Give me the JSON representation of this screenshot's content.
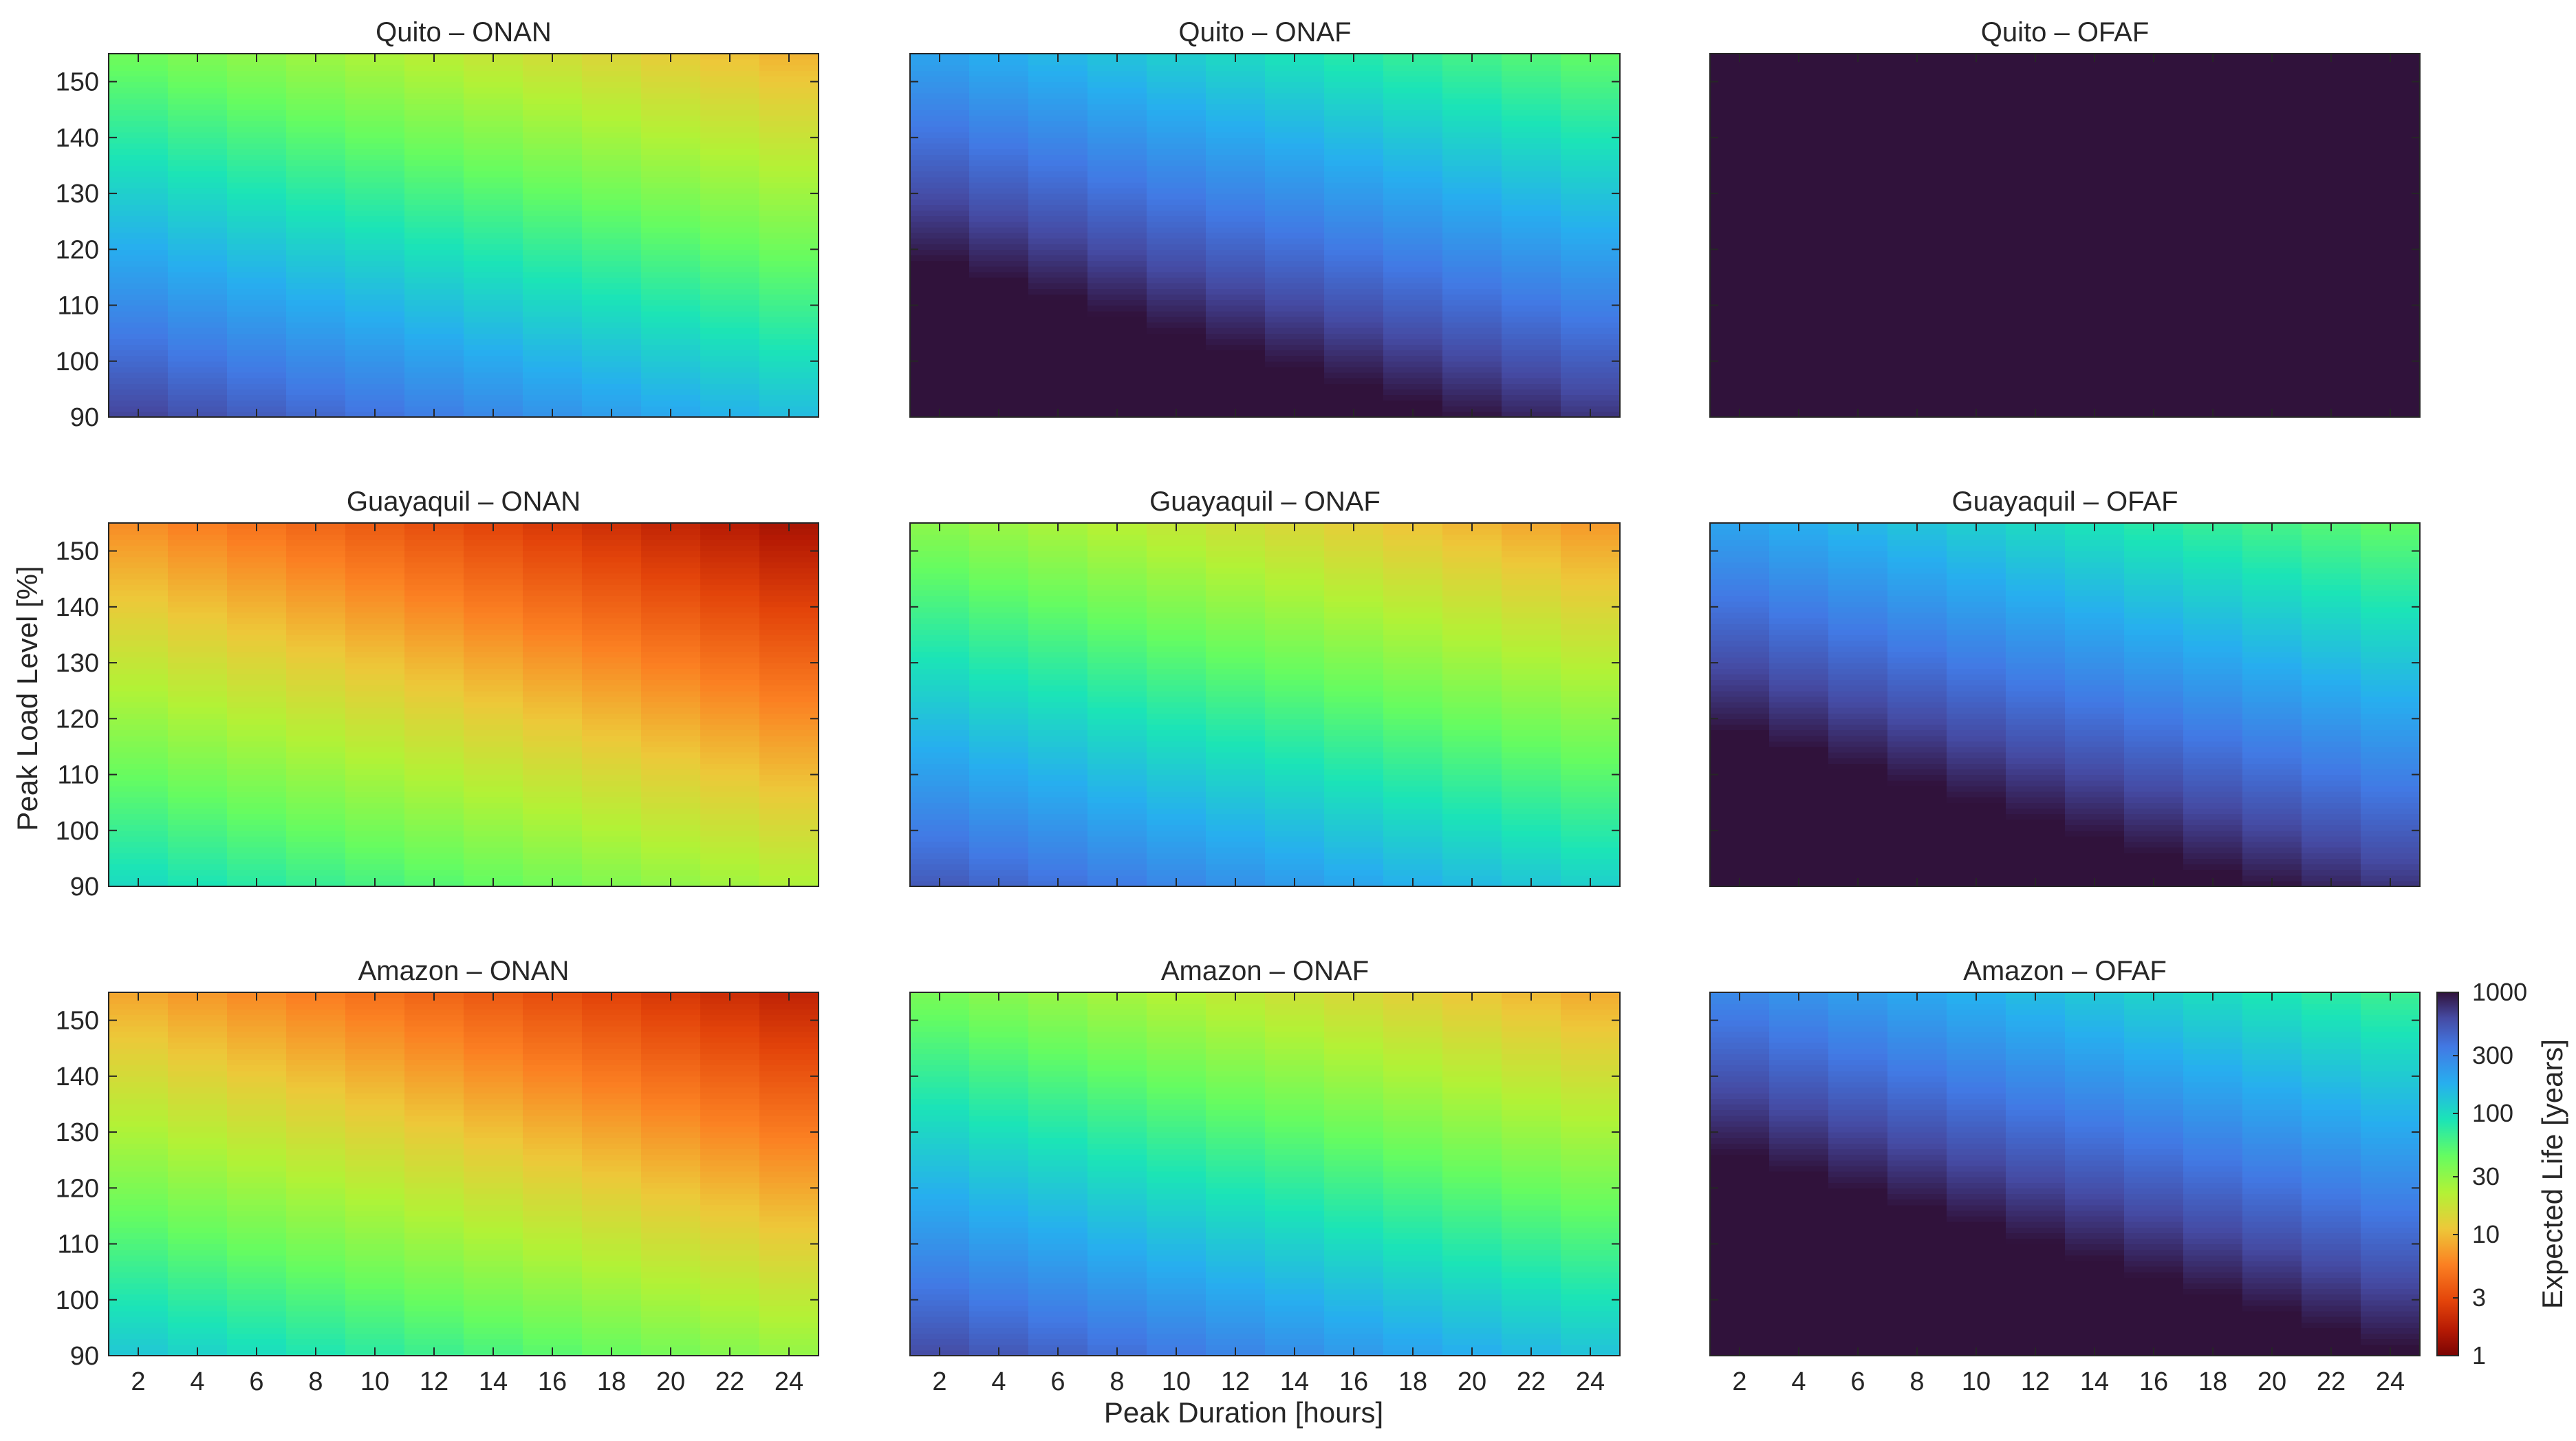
{
  "figure": {
    "xlabel": "Peak Duration [hours]",
    "ylabel": "Peak Load Level [%]",
    "colorbar": {
      "label": "Expected Life [years]",
      "ticks": [
        1,
        3,
        10,
        30,
        100,
        300,
        1000
      ],
      "tick_labels": [
        "1",
        "3",
        "10",
        "30",
        "100",
        "300",
        "1000"
      ],
      "scale": "log",
      "range": [
        1,
        1000
      ],
      "colormap": "turbo"
    }
  },
  "chart_data": [
    {
      "type": "heatmap",
      "title": "Quito – ONAN",
      "region": "Quito",
      "cooling": "ONAN",
      "x_range": [
        1,
        25
      ],
      "ylim": [
        90,
        155
      ],
      "xticks": [
        2,
        4,
        6,
        8,
        10,
        12,
        14,
        16,
        18,
        20,
        22,
        24
      ],
      "yticks": [
        90,
        100,
        110,
        120,
        130,
        140,
        150
      ],
      "z_model": {
        "z_at_x1_y90": 700,
        "decay_per_hour": 0.067,
        "decay_per_pct_load": 0.043,
        "z_cap_years": 1000
      }
    },
    {
      "type": "heatmap",
      "title": "Quito – ONAF",
      "region": "Quito",
      "cooling": "ONAF",
      "x_range": [
        1,
        25
      ],
      "ylim": [
        90,
        155
      ],
      "xticks": [
        2,
        4,
        6,
        8,
        10,
        12,
        14,
        16,
        18,
        20,
        22,
        24
      ],
      "yticks": [
        90,
        100,
        110,
        120,
        130,
        140,
        150
      ],
      "z_model": {
        "z_at_x1_y90": 3500,
        "decay_per_hour": 0.067,
        "decay_per_pct_load": 0.043,
        "z_cap_years": 1000
      }
    },
    {
      "type": "heatmap",
      "title": "Quito – OFAF",
      "region": "Quito",
      "cooling": "OFAF",
      "x_range": [
        1,
        25
      ],
      "ylim": [
        90,
        155
      ],
      "xticks": [
        2,
        4,
        6,
        8,
        10,
        12,
        14,
        16,
        18,
        20,
        22,
        24
      ],
      "yticks": [
        90,
        100,
        110,
        120,
        130,
        140,
        150
      ],
      "z_model": {
        "z_at_x1_y90": 100000,
        "decay_per_hour": 0.067,
        "decay_per_pct_load": 0.043,
        "z_cap_years": 1000
      }
    },
    {
      "type": "heatmap",
      "title": "Guayaquil – ONAN",
      "region": "Guayaquil",
      "cooling": "ONAN",
      "x_range": [
        1,
        25
      ],
      "ylim": [
        90,
        155
      ],
      "xticks": [
        2,
        4,
        6,
        8,
        10,
        12,
        14,
        16,
        18,
        20,
        22,
        24
      ],
      "yticks": [
        90,
        100,
        110,
        120,
        130,
        140,
        150
      ],
      "z_model": {
        "z_at_x1_y90": 110,
        "decay_per_hour": 0.067,
        "decay_per_pct_load": 0.043,
        "z_cap_years": 1000
      }
    },
    {
      "type": "heatmap",
      "title": "Guayaquil – ONAF",
      "region": "Guayaquil",
      "cooling": "ONAF",
      "x_range": [
        1,
        25
      ],
      "ylim": [
        90,
        155
      ],
      "xticks": [
        2,
        4,
        6,
        8,
        10,
        12,
        14,
        16,
        18,
        20,
        22,
        24
      ],
      "yticks": [
        90,
        100,
        110,
        120,
        130,
        140,
        150
      ],
      "z_model": {
        "z_at_x1_y90": 550,
        "decay_per_hour": 0.067,
        "decay_per_pct_load": 0.043,
        "z_cap_years": 1000
      }
    },
    {
      "type": "heatmap",
      "title": "Guayaquil – OFAF",
      "region": "Guayaquil",
      "cooling": "OFAF",
      "x_range": [
        1,
        25
      ],
      "ylim": [
        90,
        155
      ],
      "xticks": [
        2,
        4,
        6,
        8,
        10,
        12,
        14,
        16,
        18,
        20,
        22,
        24
      ],
      "yticks": [
        90,
        100,
        110,
        120,
        130,
        140,
        150
      ],
      "z_model": {
        "z_at_x1_y90": 3500,
        "decay_per_hour": 0.067,
        "decay_per_pct_load": 0.043,
        "z_cap_years": 1000
      }
    },
    {
      "type": "heatmap",
      "title": "Amazon – ONAN",
      "region": "Amazon",
      "cooling": "ONAN",
      "x_range": [
        1,
        25
      ],
      "ylim": [
        90,
        155
      ],
      "xticks": [
        2,
        4,
        6,
        8,
        10,
        12,
        14,
        16,
        18,
        20,
        22,
        24
      ],
      "yticks": [
        90,
        100,
        110,
        120,
        130,
        140,
        150
      ],
      "z_model": {
        "z_at_x1_y90": 140,
        "decay_per_hour": 0.067,
        "decay_per_pct_load": 0.043,
        "z_cap_years": 1000
      }
    },
    {
      "type": "heatmap",
      "title": "Amazon – ONAF",
      "region": "Amazon",
      "cooling": "ONAF",
      "x_range": [
        1,
        25
      ],
      "ylim": [
        90,
        155
      ],
      "xticks": [
        2,
        4,
        6,
        8,
        10,
        12,
        14,
        16,
        18,
        20,
        22,
        24
      ],
      "yticks": [
        90,
        100,
        110,
        120,
        130,
        140,
        150
      ],
      "z_model": {
        "z_at_x1_y90": 650,
        "decay_per_hour": 0.067,
        "decay_per_pct_load": 0.043,
        "z_cap_years": 1000
      }
    },
    {
      "type": "heatmap",
      "title": "Amazon – OFAF",
      "region": "Amazon",
      "cooling": "OFAF",
      "x_range": [
        1,
        25
      ],
      "ylim": [
        90,
        155
      ],
      "xticks": [
        2,
        4,
        6,
        8,
        10,
        12,
        14,
        16,
        18,
        20,
        22,
        24
      ],
      "yticks": [
        90,
        100,
        110,
        120,
        130,
        140,
        150
      ],
      "z_model": {
        "z_at_x1_y90": 5000,
        "decay_per_hour": 0.067,
        "decay_per_pct_load": 0.043,
        "z_cap_years": 1000
      }
    }
  ]
}
